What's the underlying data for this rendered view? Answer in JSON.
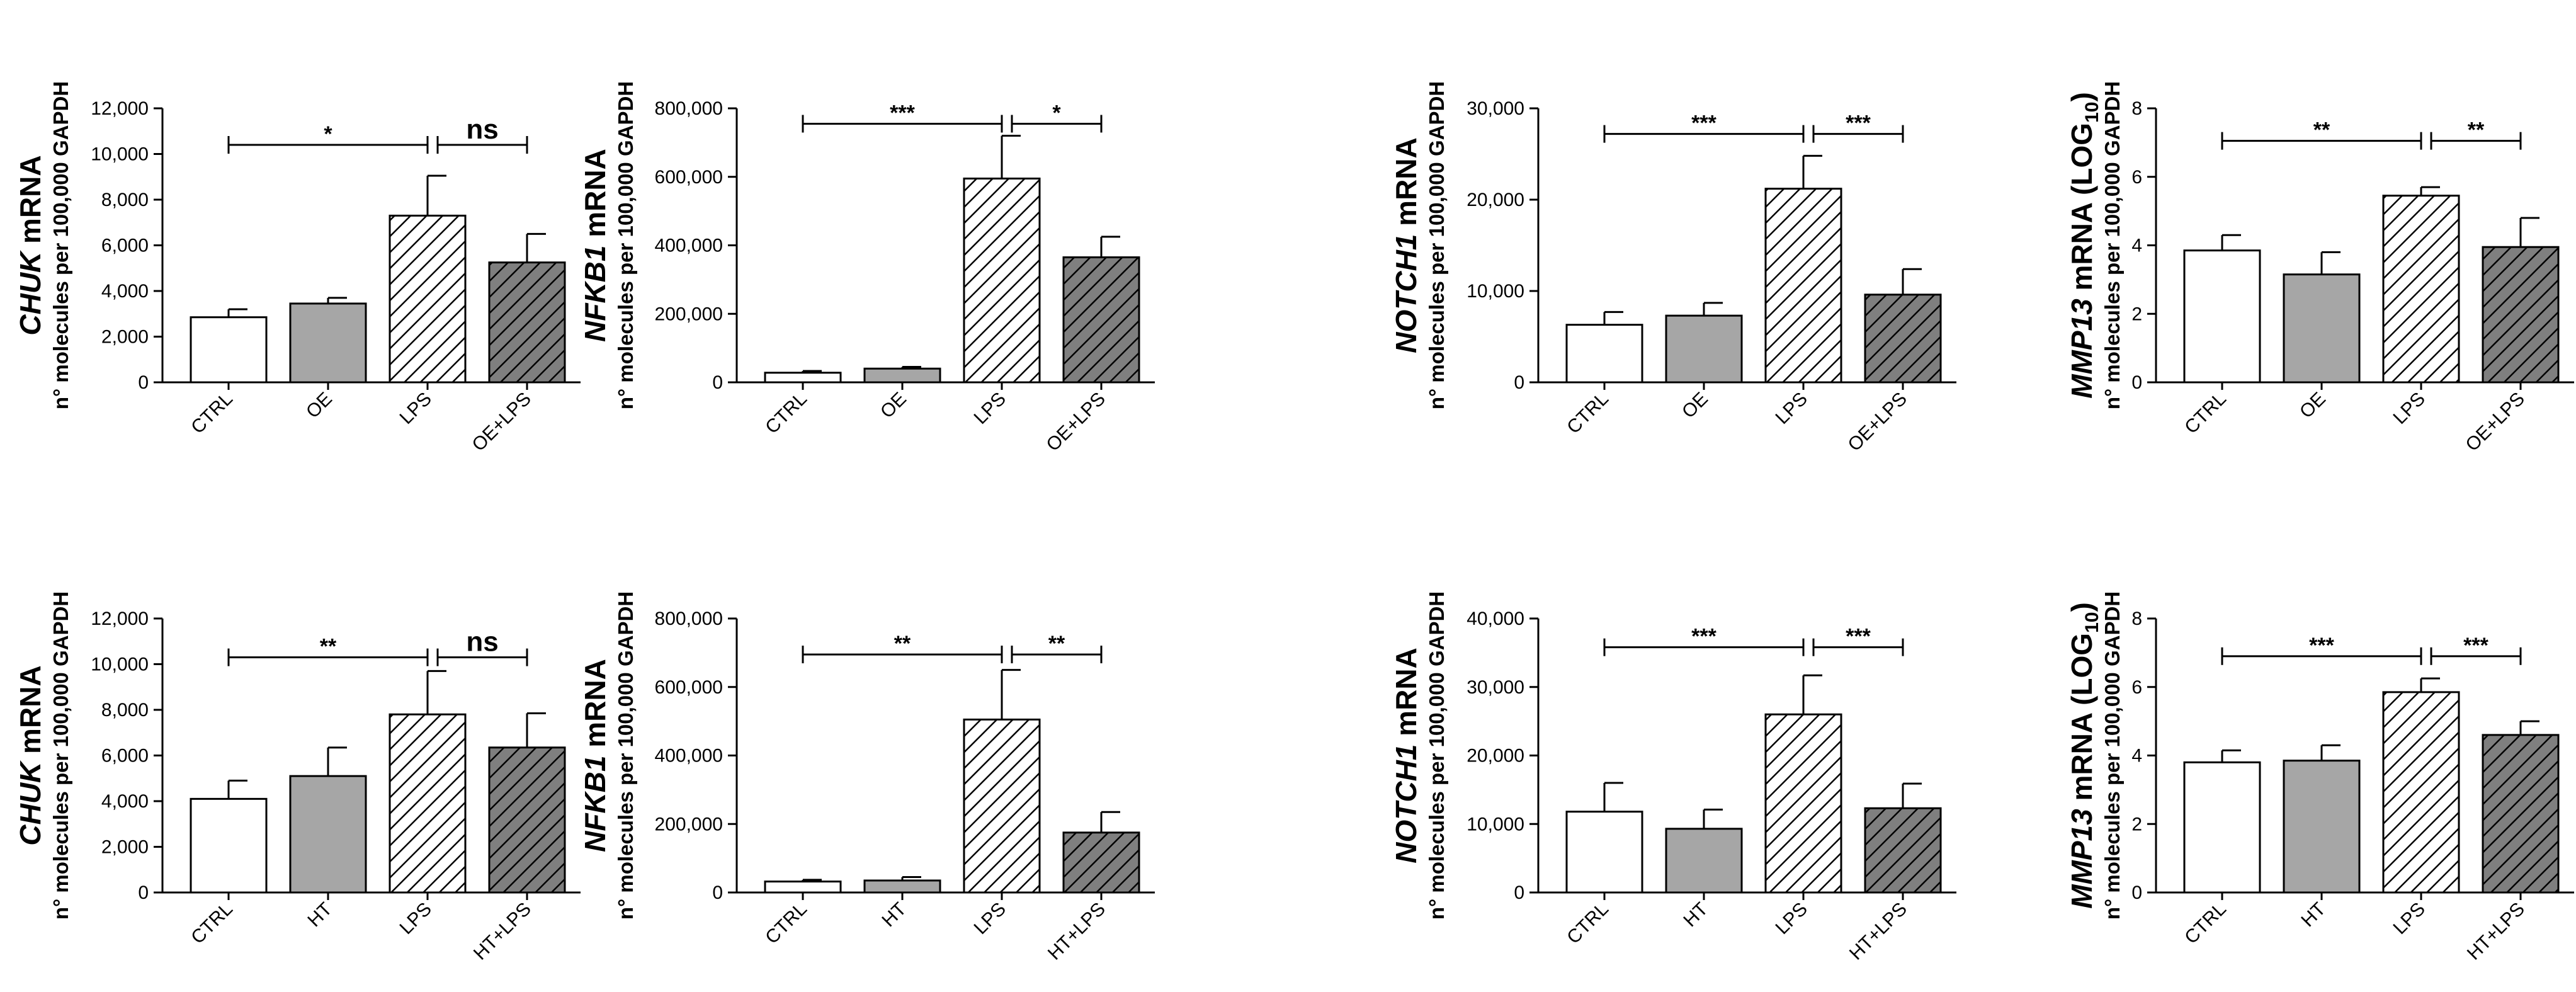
{
  "colors": {
    "ink": "#000000",
    "ctrl": "#ffffff",
    "treat": "#a6a6a6",
    "hatch_light": "#ffffff",
    "hatch_dark": "#7f7f7f"
  },
  "y_unit_label": "n° molecules per 100,000 GAPDH",
  "chart_data": [
    {
      "type": "bar",
      "gene": "CHUK",
      "ylabel_suffix": " mRNA",
      "categories": [
        "CTRL",
        "OE",
        "LPS",
        "OE+LPS"
      ],
      "values": [
        2850,
        3450,
        7300,
        5250
      ],
      "errors": [
        350,
        250,
        1750,
        1250
      ],
      "ylim": [
        0,
        12000
      ],
      "ticks": [
        "0",
        "2,000",
        "4,000",
        "6,000",
        "8,000",
        "10,000",
        "12,000"
      ],
      "tick_values": [
        0,
        2000,
        4000,
        6000,
        8000,
        10000,
        12000
      ],
      "significance": [
        {
          "from": 0,
          "to": 2,
          "label": "*",
          "y": 10400
        },
        {
          "from": 2,
          "to": 3,
          "label": "ns",
          "y": 10400
        }
      ]
    },
    {
      "type": "bar",
      "gene": "NFKB1",
      "ylabel_suffix": " mRNA",
      "categories": [
        "CTRL",
        "OE",
        "LPS",
        "OE+LPS"
      ],
      "values": [
        28000,
        40000,
        595000,
        365000
      ],
      "errors": [
        5000,
        5000,
        125000,
        60000
      ],
      "ylim": [
        0,
        800000
      ],
      "ticks": [
        "0",
        "200,000",
        "400,000",
        "600,000",
        "800,000"
      ],
      "tick_values": [
        0,
        200000,
        400000,
        600000,
        800000
      ],
      "significance": [
        {
          "from": 0,
          "to": 2,
          "label": "***",
          "y": 755000
        },
        {
          "from": 2,
          "to": 3,
          "label": "*",
          "y": 755000
        }
      ]
    },
    {
      "type": "bar",
      "gene": "NOTCH1",
      "ylabel_suffix": " mRNA",
      "categories": [
        "CTRL",
        "OE",
        "LPS",
        "OE+LPS"
      ],
      "values": [
        6300,
        7300,
        21200,
        9600
      ],
      "errors": [
        1400,
        1400,
        3600,
        2800
      ],
      "ylim": [
        0,
        30000
      ],
      "ticks": [
        "0",
        "10,000",
        "20,000",
        "30,000"
      ],
      "tick_values": [
        0,
        10000,
        20000,
        30000
      ],
      "significance": [
        {
          "from": 0,
          "to": 2,
          "label": "***",
          "y": 27200
        },
        {
          "from": 2,
          "to": 3,
          "label": "***",
          "y": 27200
        }
      ]
    },
    {
      "type": "bar",
      "gene": "MMP13",
      "ylabel_suffix": " mRNA (LOG",
      "ylabel_sub": "10",
      "ylabel_close": ")",
      "categories": [
        "CTRL",
        "OE",
        "LPS",
        "OE+LPS"
      ],
      "values": [
        3.85,
        3.15,
        5.45,
        3.95
      ],
      "errors": [
        0.45,
        0.65,
        0.25,
        0.85
      ],
      "ylim": [
        0,
        8
      ],
      "ticks": [
        "0",
        "2",
        "4",
        "6",
        "8"
      ],
      "tick_values": [
        0,
        2,
        4,
        6,
        8
      ],
      "significance": [
        {
          "from": 0,
          "to": 2,
          "label": "**",
          "y": 7.05
        },
        {
          "from": 2,
          "to": 3,
          "label": "**",
          "y": 7.05
        }
      ]
    },
    {
      "type": "bar",
      "gene": "CHUK",
      "ylabel_suffix": " mRNA",
      "categories": [
        "CTRL",
        "HT",
        "LPS",
        "HT+LPS"
      ],
      "values": [
        4100,
        5100,
        7800,
        6350
      ],
      "errors": [
        800,
        1250,
        1900,
        1500
      ],
      "ylim": [
        0,
        12000
      ],
      "ticks": [
        "0",
        "2,000",
        "4,000",
        "6,000",
        "8,000",
        "10,000",
        "12,000"
      ],
      "tick_values": [
        0,
        2000,
        4000,
        6000,
        8000,
        10000,
        12000
      ],
      "significance": [
        {
          "from": 0,
          "to": 2,
          "label": "**",
          "y": 10300
        },
        {
          "from": 2,
          "to": 3,
          "label": "ns",
          "y": 10300
        }
      ]
    },
    {
      "type": "bar",
      "gene": "NFKB1",
      "ylabel_suffix": " mRNA",
      "categories": [
        "CTRL",
        "HT",
        "LPS",
        "HT+LPS"
      ],
      "values": [
        32000,
        35000,
        505000,
        175000
      ],
      "errors": [
        5000,
        10000,
        145000,
        60000
      ],
      "ylim": [
        0,
        800000
      ],
      "ticks": [
        "0",
        "200,000",
        "400,000",
        "600,000",
        "800,000"
      ],
      "tick_values": [
        0,
        200000,
        400000,
        600000,
        800000
      ],
      "significance": [
        {
          "from": 0,
          "to": 2,
          "label": "**",
          "y": 695000
        },
        {
          "from": 2,
          "to": 3,
          "label": "**",
          "y": 695000
        }
      ]
    },
    {
      "type": "bar",
      "gene": "NOTCH1",
      "ylabel_suffix": " mRNA",
      "categories": [
        "CTRL",
        "HT",
        "LPS",
        "HT+LPS"
      ],
      "values": [
        11800,
        9300,
        26000,
        12300
      ],
      "errors": [
        4200,
        2800,
        5700,
        3600
      ],
      "ylim": [
        0,
        40000
      ],
      "ticks": [
        "0",
        "10,000",
        "20,000",
        "30,000",
        "40,000"
      ],
      "tick_values": [
        0,
        10000,
        20000,
        30000,
        40000
      ],
      "significance": [
        {
          "from": 0,
          "to": 2,
          "label": "***",
          "y": 35800
        },
        {
          "from": 2,
          "to": 3,
          "label": "***",
          "y": 35800
        }
      ]
    },
    {
      "type": "bar",
      "gene": "MMP13",
      "ylabel_suffix": " mRNA (LOG",
      "ylabel_sub": "10",
      "ylabel_close": ")",
      "categories": [
        "CTRL",
        "HT",
        "LPS",
        "HT+LPS"
      ],
      "values": [
        3.8,
        3.85,
        5.85,
        4.6
      ],
      "errors": [
        0.35,
        0.45,
        0.4,
        0.4
      ],
      "ylim": [
        0,
        8
      ],
      "ticks": [
        "0",
        "2",
        "4",
        "6",
        "8"
      ],
      "tick_values": [
        0,
        2,
        4,
        6,
        8
      ],
      "significance": [
        {
          "from": 0,
          "to": 2,
          "label": "***",
          "y": 6.9
        },
        {
          "from": 2,
          "to": 3,
          "label": "***",
          "y": 6.9
        }
      ]
    }
  ]
}
